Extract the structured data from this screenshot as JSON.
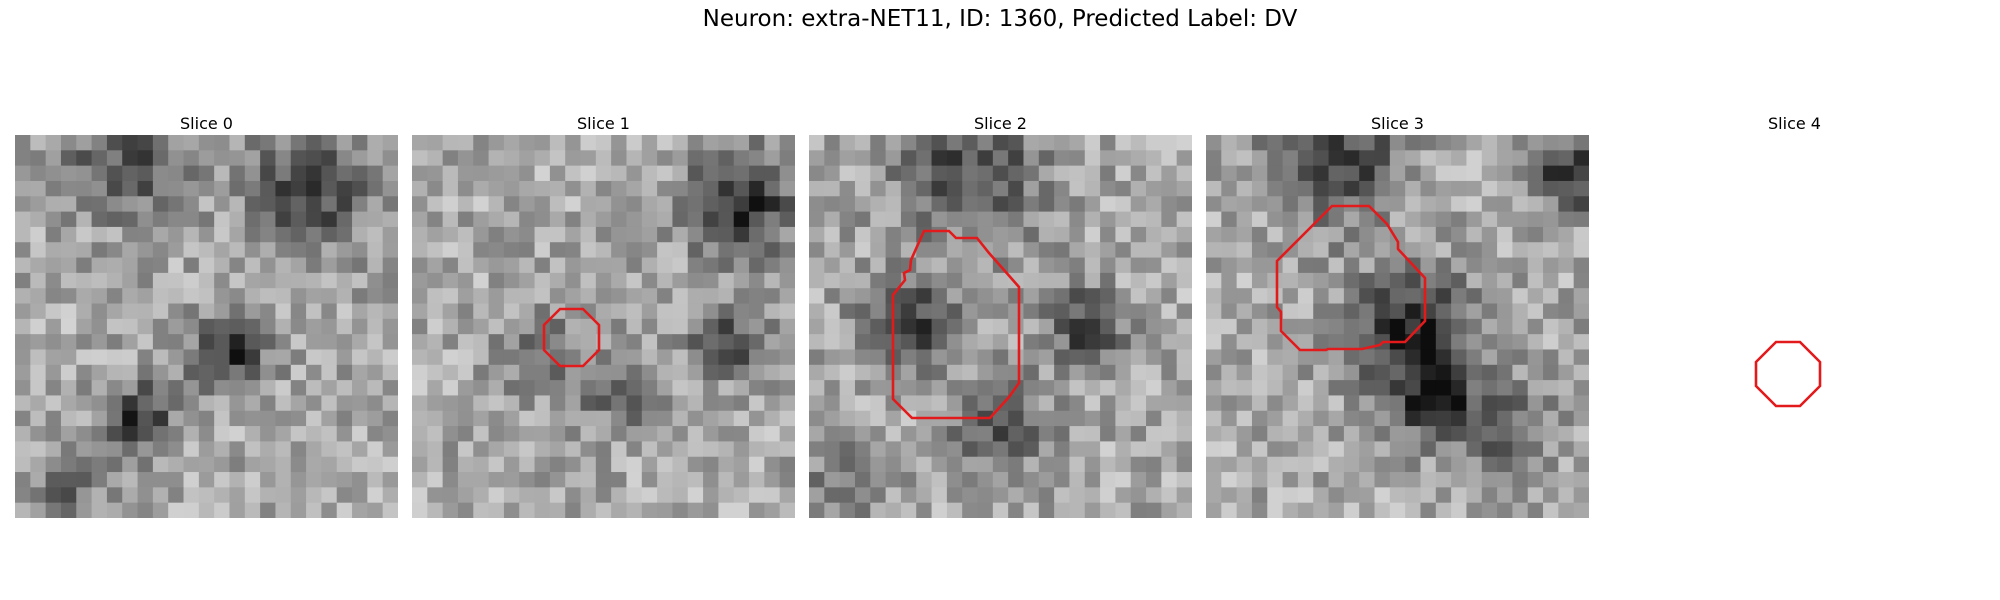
{
  "figure": {
    "title": "Neuron: extra-NET11, ID: 1360, Predicted Label: DV"
  },
  "panels": [
    {
      "title": "Slice 0",
      "outline": false
    },
    {
      "title": "Slice 1",
      "outline": true
    },
    {
      "title": "Slice 2",
      "outline": true
    },
    {
      "title": "Slice 3",
      "outline": true
    },
    {
      "title": "Slice 4",
      "outline": true
    }
  ],
  "colors": {
    "outline": "#e31a1c",
    "background": "#ffffff"
  }
}
